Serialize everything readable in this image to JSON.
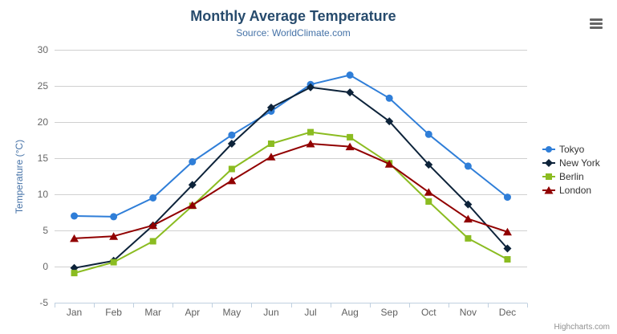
{
  "chart": {
    "title": "Monthly Average Temperature",
    "subtitle": "Source: WorldClimate.com",
    "y_axis_title": "Temperature (°C)",
    "credits": "Highcharts.com",
    "colors": {
      "title": "#274b6d",
      "subtitle": "#4572a7",
      "axis_title": "#4572a7",
      "axis_labels": "#666666",
      "grid_line": "#d0d0d0",
      "axis_line": "#c0d0e0",
      "legend_text": "#333333",
      "burger_icon": "#666666",
      "credits_text": "#909090"
    }
  },
  "chart_data": {
    "type": "line",
    "title": "Monthly Average Temperature",
    "subtitle": "Source: WorldClimate.com",
    "xlabel": "",
    "ylabel": "Temperature (°C)",
    "categories": [
      "Jan",
      "Feb",
      "Mar",
      "Apr",
      "May",
      "Jun",
      "Jul",
      "Aug",
      "Sep",
      "Oct",
      "Nov",
      "Dec"
    ],
    "series": [
      {
        "name": "Tokyo",
        "color": "#2f7ed8",
        "marker": "circle",
        "values": [
          7.0,
          6.9,
          9.5,
          14.5,
          18.2,
          21.5,
          25.2,
          26.5,
          23.3,
          18.3,
          13.9,
          9.6
        ]
      },
      {
        "name": "New York",
        "color": "#0d233a",
        "marker": "diamond",
        "values": [
          -0.2,
          0.8,
          5.7,
          11.3,
          17.0,
          22.0,
          24.8,
          24.1,
          20.1,
          14.1,
          8.6,
          2.5
        ]
      },
      {
        "name": "Berlin",
        "color": "#8bbc21",
        "marker": "square",
        "values": [
          -0.9,
          0.6,
          3.5,
          8.4,
          13.5,
          17.0,
          18.6,
          17.9,
          14.3,
          9.0,
          3.9,
          1.0
        ]
      },
      {
        "name": "London",
        "color": "#910000",
        "marker": "triangle",
        "values": [
          3.9,
          4.2,
          5.7,
          8.5,
          11.9,
          15.2,
          17.0,
          16.6,
          14.2,
          10.3,
          6.6,
          4.8
        ]
      }
    ],
    "ylim": [
      -5,
      30
    ],
    "y_ticks": [
      -5,
      0,
      5,
      10,
      15,
      20,
      25,
      30
    ],
    "grid": true,
    "legend_position": "right"
  }
}
